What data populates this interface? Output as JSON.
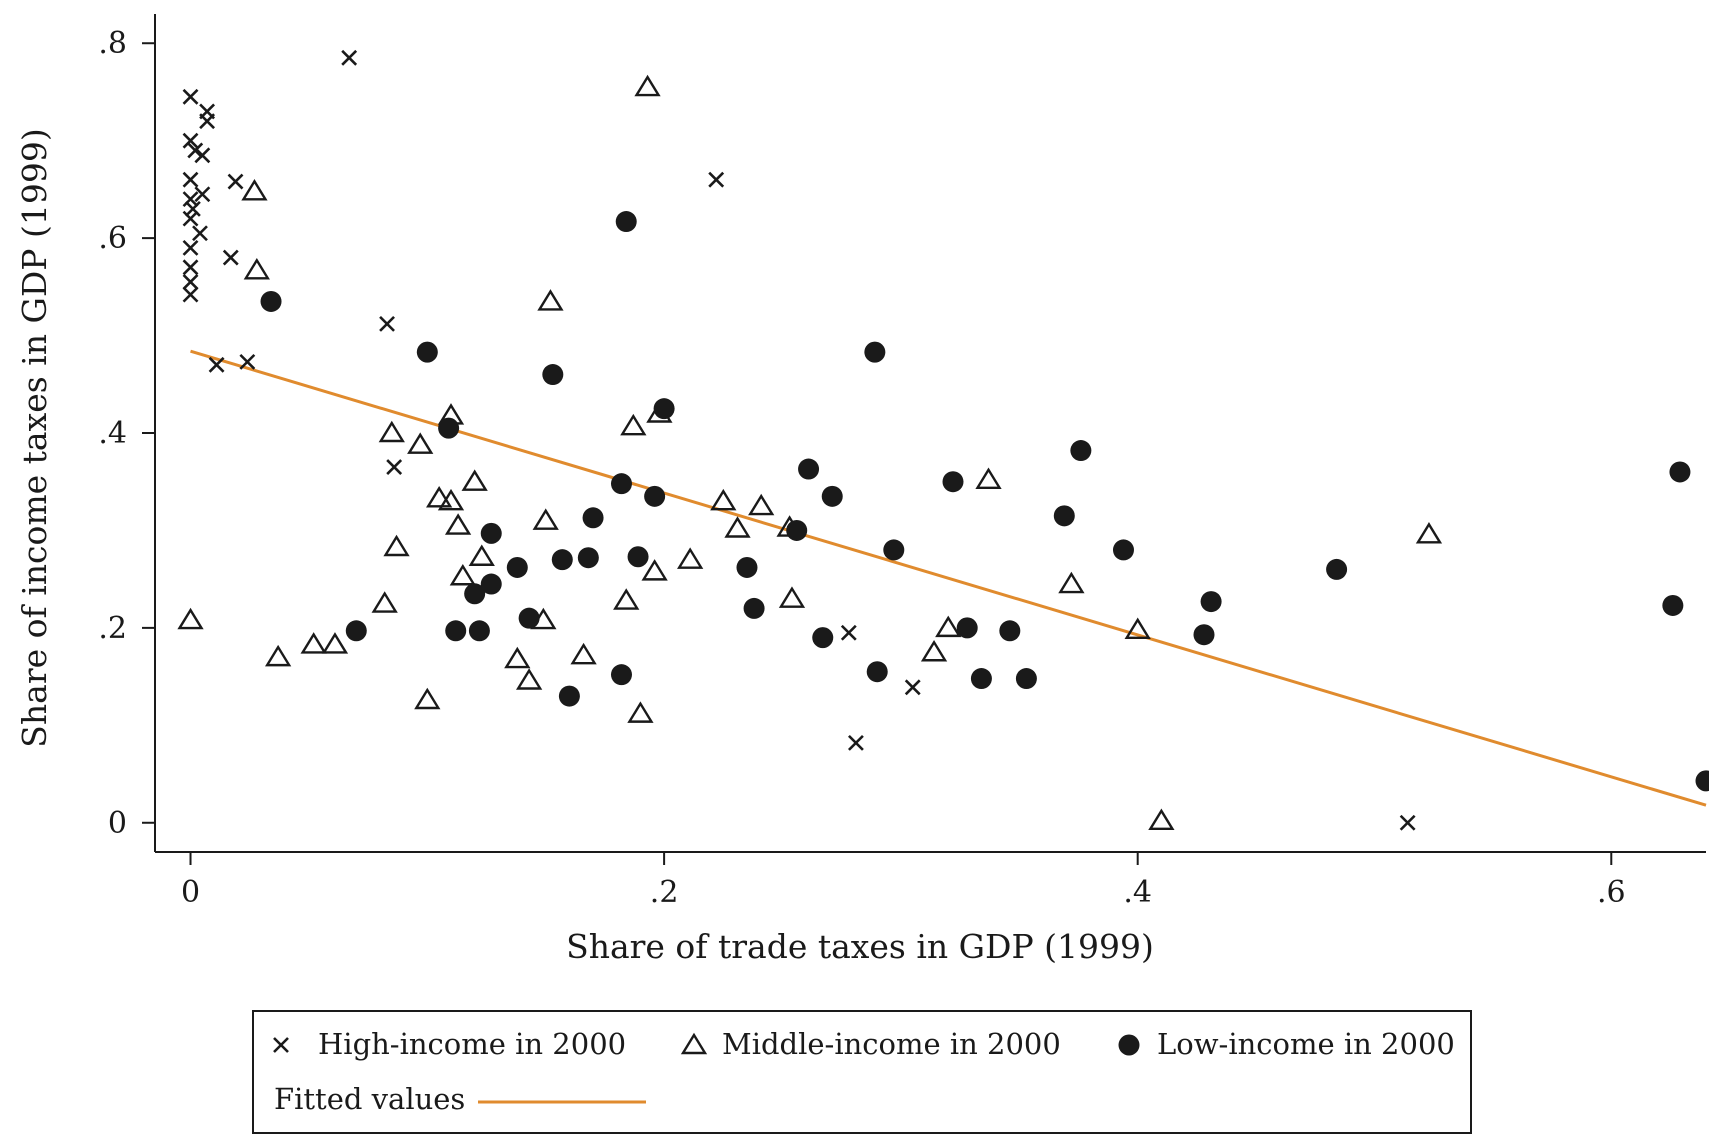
{
  "chart_data": {
    "type": "scatter",
    "xlabel": "Share of trade taxes in GDP (1999)",
    "ylabel": "Share of income taxes  in GDP (1999)",
    "xlim": [
      -0.015,
      0.64
    ],
    "ylim": [
      -0.03,
      0.83
    ],
    "x_ticks": [
      {
        "value": 0,
        "label": "0"
      },
      {
        "value": 0.2,
        "label": ".2"
      },
      {
        "value": 0.4,
        "label": ".4"
      },
      {
        "value": 0.6,
        "label": ".6"
      }
    ],
    "y_ticks": [
      {
        "value": 0,
        "label": "0"
      },
      {
        "value": 0.2,
        "label": ".2"
      },
      {
        "value": 0.4,
        "label": ".4"
      },
      {
        "value": 0.6,
        "label": ".6"
      },
      {
        "value": 0.8,
        "label": ".8"
      }
    ],
    "grid": false,
    "legend_position": "bottom",
    "series": [
      {
        "name": "High-income in 2000",
        "marker": "x",
        "color": "#1a1a1a",
        "points": [
          [
            0.0,
            0.745
          ],
          [
            0.007,
            0.73
          ],
          [
            0.007,
            0.72
          ],
          [
            0.0,
            0.7
          ],
          [
            0.002,
            0.69
          ],
          [
            0.005,
            0.685
          ],
          [
            0.0,
            0.66
          ],
          [
            0.005,
            0.645
          ],
          [
            0.0,
            0.64
          ],
          [
            0.001,
            0.63
          ],
          [
            0.0,
            0.62
          ],
          [
            0.004,
            0.605
          ],
          [
            0.0,
            0.59
          ],
          [
            0.0,
            0.57
          ],
          [
            0.0,
            0.555
          ],
          [
            0.0,
            0.542
          ],
          [
            0.019,
            0.658
          ],
          [
            0.017,
            0.58
          ],
          [
            0.067,
            0.785
          ],
          [
            0.083,
            0.512
          ],
          [
            0.011,
            0.47
          ],
          [
            0.024,
            0.473
          ],
          [
            0.086,
            0.365
          ],
          [
            0.222,
            0.66
          ],
          [
            0.278,
            0.195
          ],
          [
            0.281,
            0.082
          ],
          [
            0.305,
            0.139
          ],
          [
            0.514,
            0.0
          ]
        ]
      },
      {
        "name": "Middle-income in 2000",
        "marker": "triangle",
        "color": "#1a1a1a",
        "points": [
          [
            0.0,
            0.208
          ],
          [
            0.193,
            0.755
          ],
          [
            0.027,
            0.648
          ],
          [
            0.028,
            0.567
          ],
          [
            0.152,
            0.535
          ],
          [
            0.11,
            0.418
          ],
          [
            0.085,
            0.4
          ],
          [
            0.097,
            0.388
          ],
          [
            0.187,
            0.407
          ],
          [
            0.198,
            0.42
          ],
          [
            0.12,
            0.35
          ],
          [
            0.105,
            0.333
          ],
          [
            0.11,
            0.33
          ],
          [
            0.113,
            0.305
          ],
          [
            0.087,
            0.283
          ],
          [
            0.115,
            0.253
          ],
          [
            0.123,
            0.273
          ],
          [
            0.15,
            0.31
          ],
          [
            0.196,
            0.258
          ],
          [
            0.211,
            0.27
          ],
          [
            0.225,
            0.33
          ],
          [
            0.241,
            0.325
          ],
          [
            0.231,
            0.302
          ],
          [
            0.253,
            0.303
          ],
          [
            0.254,
            0.23
          ],
          [
            0.082,
            0.225
          ],
          [
            0.184,
            0.228
          ],
          [
            0.037,
            0.17
          ],
          [
            0.052,
            0.183
          ],
          [
            0.061,
            0.183
          ],
          [
            0.138,
            0.168
          ],
          [
            0.143,
            0.146
          ],
          [
            0.149,
            0.208
          ],
          [
            0.166,
            0.172
          ],
          [
            0.1,
            0.126
          ],
          [
            0.19,
            0.112
          ],
          [
            0.314,
            0.175
          ],
          [
            0.32,
            0.2
          ],
          [
            0.337,
            0.352
          ],
          [
            0.372,
            0.245
          ],
          [
            0.4,
            0.198
          ],
          [
            0.41,
            0.002
          ],
          [
            0.523,
            0.296
          ]
        ]
      },
      {
        "name": "Low-income in 2000",
        "marker": "circle",
        "color": "#1a1a1a",
        "points": [
          [
            0.034,
            0.535
          ],
          [
            0.184,
            0.617
          ],
          [
            0.1,
            0.483
          ],
          [
            0.153,
            0.46
          ],
          [
            0.289,
            0.483
          ],
          [
            0.2,
            0.425
          ],
          [
            0.109,
            0.405
          ],
          [
            0.182,
            0.348
          ],
          [
            0.196,
            0.335
          ],
          [
            0.261,
            0.363
          ],
          [
            0.322,
            0.35
          ],
          [
            0.376,
            0.382
          ],
          [
            0.369,
            0.315
          ],
          [
            0.394,
            0.28
          ],
          [
            0.629,
            0.36
          ],
          [
            0.127,
            0.297
          ],
          [
            0.138,
            0.262
          ],
          [
            0.157,
            0.27
          ],
          [
            0.168,
            0.272
          ],
          [
            0.17,
            0.313
          ],
          [
            0.189,
            0.273
          ],
          [
            0.235,
            0.262
          ],
          [
            0.256,
            0.3
          ],
          [
            0.271,
            0.335
          ],
          [
            0.297,
            0.28
          ],
          [
            0.12,
            0.235
          ],
          [
            0.127,
            0.245
          ],
          [
            0.143,
            0.21
          ],
          [
            0.07,
            0.197
          ],
          [
            0.112,
            0.197
          ],
          [
            0.122,
            0.197
          ],
          [
            0.238,
            0.22
          ],
          [
            0.267,
            0.19
          ],
          [
            0.29,
            0.155
          ],
          [
            0.328,
            0.2
          ],
          [
            0.346,
            0.197
          ],
          [
            0.334,
            0.148
          ],
          [
            0.353,
            0.148
          ],
          [
            0.182,
            0.152
          ],
          [
            0.16,
            0.13
          ],
          [
            0.431,
            0.227
          ],
          [
            0.428,
            0.193
          ],
          [
            0.484,
            0.26
          ],
          [
            0.626,
            0.223
          ],
          [
            0.64,
            0.043
          ]
        ]
      }
    ],
    "fitted": {
      "name": "Fitted values",
      "color": "#e08b2e",
      "points": [
        [
          0.0,
          0.484
        ],
        [
          0.64,
          0.018
        ]
      ]
    }
  }
}
